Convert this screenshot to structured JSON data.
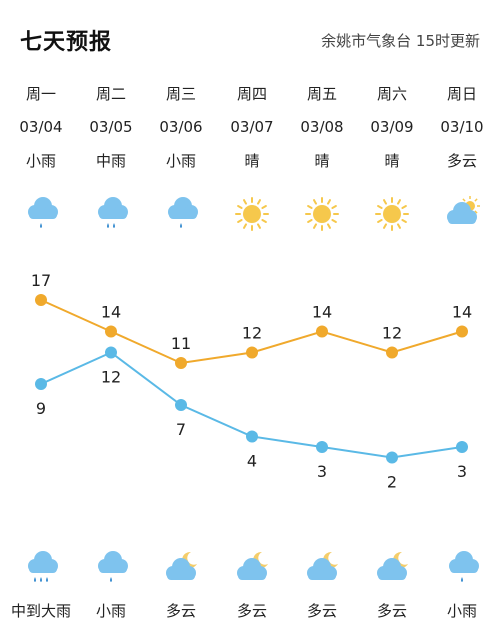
{
  "header": {
    "title": "七天预报",
    "source": "余姚市气象台 15时更新"
  },
  "days": [
    {
      "dow": "周一",
      "date": "03/04",
      "day_cond": "小雨",
      "day_icon": "light-rain",
      "night_cond": "中到大雨",
      "night_icon": "heavy-rain"
    },
    {
      "dow": "周二",
      "date": "03/05",
      "day_cond": "中雨",
      "day_icon": "moderate-rain",
      "night_cond": "小雨",
      "night_icon": "light-rain"
    },
    {
      "dow": "周三",
      "date": "03/06",
      "day_cond": "小雨",
      "day_icon": "light-rain",
      "night_cond": "多云",
      "night_icon": "cloudy-night"
    },
    {
      "dow": "周四",
      "date": "03/07",
      "day_cond": "晴",
      "day_icon": "sunny",
      "night_cond": "多云",
      "night_icon": "cloudy-night"
    },
    {
      "dow": "周五",
      "date": "03/08",
      "day_cond": "晴",
      "day_icon": "sunny",
      "night_cond": "多云",
      "night_icon": "cloudy-night"
    },
    {
      "dow": "周六",
      "date": "03/09",
      "day_cond": "晴",
      "day_icon": "sunny",
      "night_cond": "多云",
      "night_icon": "cloudy-night"
    },
    {
      "dow": "周日",
      "date": "03/10",
      "day_cond": "多云",
      "day_icon": "cloudy-day",
      "night_cond": "小雨",
      "night_icon": "light-rain"
    }
  ],
  "chart_data": {
    "type": "line",
    "x": [
      "03/04",
      "03/05",
      "03/06",
      "03/07",
      "03/08",
      "03/09",
      "03/10"
    ],
    "series": [
      {
        "values": [
          17,
          14,
          11,
          12,
          14,
          12,
          14
        ],
        "color": "#f0a92c"
      },
      {
        "values": [
          9,
          12,
          7,
          4,
          3,
          2,
          3
        ],
        "color": "#5ab9e6"
      }
    ]
  },
  "colors": {
    "high": "#f0a92c",
    "low": "#5ab9e6",
    "cloud": "#7ec3ee",
    "sun": "#f6c84c",
    "moon": "#f4cd6a"
  }
}
